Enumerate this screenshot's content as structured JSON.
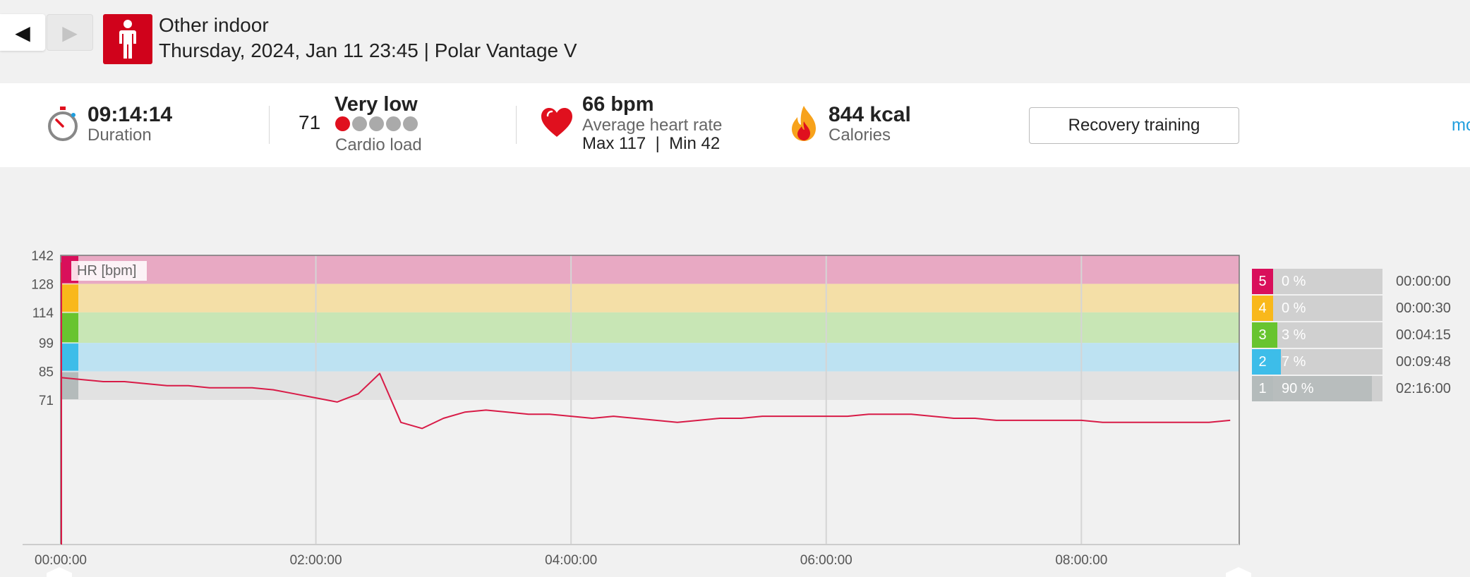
{
  "nav": {
    "back_glyph": "◀",
    "forward_glyph": "▶"
  },
  "header": {
    "sport_icon": "person-standing-icon",
    "sport": "Other indoor",
    "subtitle": "Thursday, 2024, Jan 11 23:45 | Polar Vantage V",
    "brand_color": "#d0021b"
  },
  "summary": {
    "duration": {
      "value": "09:14:14",
      "label": "Duration",
      "icon": "stopwatch-icon"
    },
    "cardio": {
      "score": "71",
      "level": "Very low",
      "label": "Cardio load",
      "dots_filled": 1,
      "dots_total": 5
    },
    "heart": {
      "bpm": "66 bpm",
      "label": "Average heart rate",
      "max_min": "Max 117  |  Min 42",
      "icon": "heart-icon"
    },
    "calories": {
      "value": "844 kcal",
      "label": "Calories",
      "icon": "flame-icon"
    },
    "benefit_button": "Recovery training",
    "more_link": "mo"
  },
  "chart": {
    "series_label": "HR [bpm]",
    "line_color": "#d81b47",
    "zone_colors": [
      "#d90f5b",
      "#f9b81b",
      "#68c42f",
      "#3dbde9",
      "#b4bbbb"
    ],
    "zone_band_colors": [
      "#e8a9c3",
      "#f4dfa7",
      "#c8e6b5",
      "#bde2f2",
      "#e2e2e2"
    ]
  },
  "chart_data": {
    "type": "line",
    "xlabel": "",
    "ylabel": "HR [bpm]",
    "x_ticks": [
      "00:00:00",
      "02:00:00",
      "04:00:00",
      "06:00:00",
      "08:00:00"
    ],
    "y_ticks": [
      71,
      85,
      99,
      114,
      128,
      142
    ],
    "xlim_seconds": [
      0,
      33254
    ],
    "ylim": [
      0,
      142
    ],
    "grid": true,
    "zones": [
      {
        "zone": 5,
        "from": 128,
        "to": 142,
        "percent": "0 %",
        "time": "00:00:00",
        "fraction": 0.0
      },
      {
        "zone": 4,
        "from": 114,
        "to": 128,
        "percent": "0 %",
        "time": "00:00:30",
        "fraction": 0.0
      },
      {
        "zone": 3,
        "from": 99,
        "to": 114,
        "percent": "3 %",
        "time": "00:04:15",
        "fraction": 0.03
      },
      {
        "zone": 2,
        "from": 85,
        "to": 99,
        "percent": "7 %",
        "time": "00:09:48",
        "fraction": 0.07
      },
      {
        "zone": 1,
        "from": 71,
        "to": 85,
        "percent": "90 %",
        "time": "02:16:00",
        "fraction": 0.9
      }
    ],
    "series": [
      {
        "x": [
          "00:00:00",
          "00:10:00",
          "00:20:00",
          "00:30:00",
          "00:40:00",
          "00:50:00",
          "01:00:00",
          "01:10:00",
          "01:20:00",
          "01:30:00",
          "01:40:00",
          "01:50:00",
          "02:00:00",
          "02:10:00",
          "02:20:00",
          "02:30:00",
          "02:40:00",
          "02:50:00",
          "03:00:00",
          "03:10:00",
          "03:20:00",
          "03:30:00",
          "03:40:00",
          "03:50:00",
          "04:00:00",
          "04:10:00",
          "04:20:00",
          "04:30:00",
          "04:40:00",
          "04:50:00",
          "05:00:00",
          "05:10:00",
          "05:20:00",
          "05:30:00",
          "05:40:00",
          "05:50:00",
          "06:00:00",
          "06:10:00",
          "06:20:00",
          "06:30:00",
          "06:40:00",
          "06:50:00",
          "07:00:00",
          "07:10:00",
          "07:20:00",
          "07:30:00",
          "07:40:00",
          "07:50:00",
          "08:00:00",
          "08:10:00",
          "08:20:00",
          "08:30:00",
          "08:40:00",
          "08:50:00",
          "09:00:00",
          "09:10:00"
        ],
        "values": [
          82,
          81,
          80,
          80,
          79,
          78,
          78,
          77,
          77,
          77,
          76,
          74,
          72,
          70,
          74,
          84,
          60,
          57,
          62,
          65,
          66,
          65,
          64,
          64,
          63,
          62,
          63,
          62,
          61,
          60,
          61,
          62,
          62,
          63,
          63,
          63,
          63,
          63,
          64,
          64,
          64,
          63,
          62,
          62,
          61,
          61,
          61,
          61,
          61,
          60,
          60,
          60,
          60,
          60,
          60,
          61
        ]
      }
    ]
  }
}
